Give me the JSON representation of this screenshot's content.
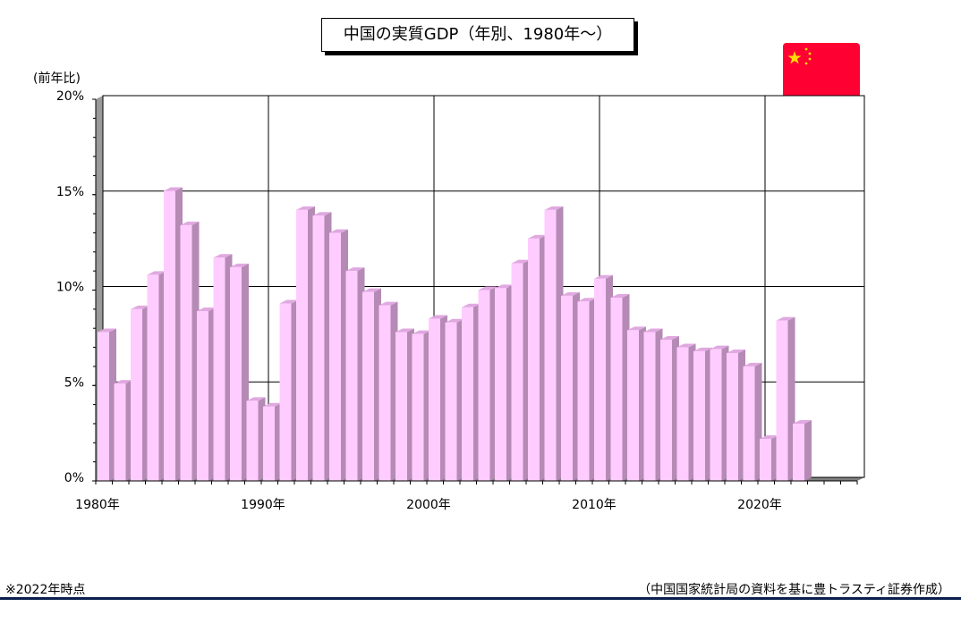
{
  "chart_data": {
    "type": "bar",
    "title": "中国の実質GDP（年別、1980年～）",
    "ylabel": "(前年比)",
    "xlabel": "",
    "ylim": [
      0,
      20
    ],
    "grid": true,
    "bar_color": "#ffccff",
    "categories": [
      1980,
      1981,
      1982,
      1983,
      1984,
      1985,
      1986,
      1987,
      1988,
      1989,
      1990,
      1991,
      1992,
      1993,
      1994,
      1995,
      1996,
      1997,
      1998,
      1999,
      2000,
      2001,
      2002,
      2003,
      2004,
      2005,
      2006,
      2007,
      2008,
      2009,
      2010,
      2011,
      2012,
      2013,
      2014,
      2015,
      2016,
      2017,
      2018,
      2019,
      2020,
      2021,
      2022
    ],
    "values": [
      7.8,
      5.1,
      9.0,
      10.8,
      15.2,
      13.4,
      8.9,
      11.7,
      11.2,
      4.2,
      3.9,
      9.3,
      14.2,
      13.9,
      13.0,
      11.0,
      9.9,
      9.2,
      7.8,
      7.7,
      8.5,
      8.3,
      9.1,
      10.0,
      10.1,
      11.4,
      12.7,
      14.2,
      9.7,
      9.4,
      10.6,
      9.6,
      7.9,
      7.8,
      7.4,
      7.0,
      6.8,
      6.9,
      6.7,
      6.0,
      2.2,
      8.4,
      3.0
    ],
    "x_tick_labels": [
      "1980年",
      "1990年",
      "2000年",
      "2010年",
      "2020年"
    ],
    "y_tick_labels": [
      "0%",
      "5%",
      "10%",
      "15%",
      "20%"
    ],
    "y_ticks": [
      0,
      5,
      10,
      15,
      20
    ]
  },
  "flag": {
    "icon": "china-flag-icon",
    "red": "#ff0033",
    "star": "#ffdd00"
  },
  "footnote": "※2022年時点",
  "source": "（中国国家統計局の資料を基に豊トラスティ証券作成）",
  "rule_color": "#0a1f4d"
}
